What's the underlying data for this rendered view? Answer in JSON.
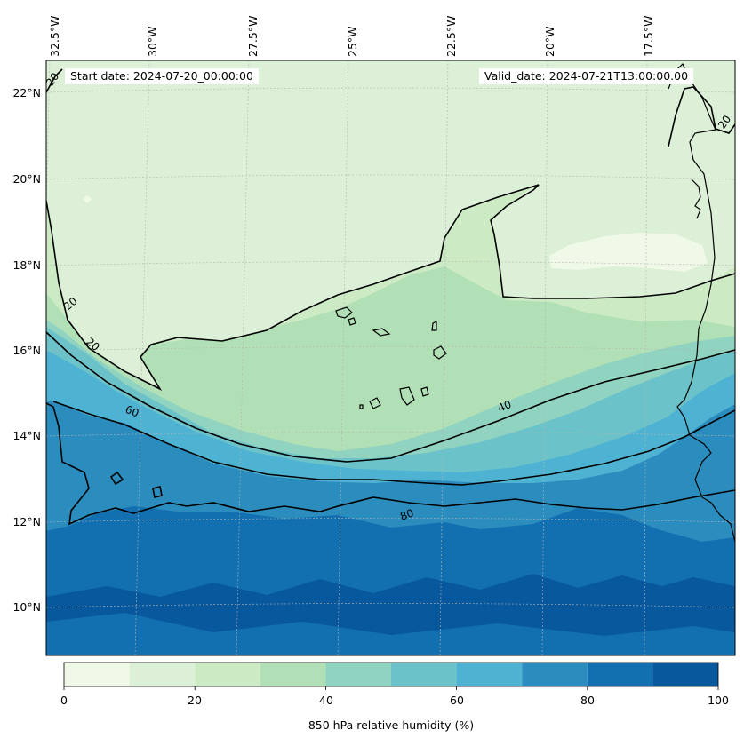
{
  "header": {
    "start_label": "Start date: 2024-07-20_00:00:00",
    "valid_label": "Valid_date: 2024-07-21T13:00:00.00"
  },
  "axes": {
    "lon_labels": [
      "32.5°W",
      "30°W",
      "27.5°W",
      "25°W",
      "22.5°W",
      "20°W",
      "17.5°W"
    ],
    "lat_labels": [
      "22°N",
      "20°N",
      "18°N",
      "16°N",
      "14°N",
      "12°N",
      "10°N"
    ]
  },
  "contour_labels": [
    "20",
    "20",
    "20",
    "60",
    "40",
    "80",
    "20"
  ],
  "colorbar": {
    "title": "850 hPa relative humidity (%)",
    "ticks": [
      "0",
      "20",
      "40",
      "60",
      "80",
      "100"
    ],
    "bins": [
      0,
      10,
      20,
      30,
      40,
      50,
      60,
      70,
      80,
      90,
      100
    ],
    "colors": [
      "#f0f9e8",
      "#dbf0d6",
      "#ccebc5",
      "#b2e0b6",
      "#8fd3c0",
      "#6bc3c9",
      "#4eb3d3",
      "#2b8cbe",
      "#1270b0",
      "#08589e"
    ]
  },
  "colors": {
    "coastline": "#000000",
    "contour": "#000000",
    "gridline": "#b4b4b4"
  }
}
